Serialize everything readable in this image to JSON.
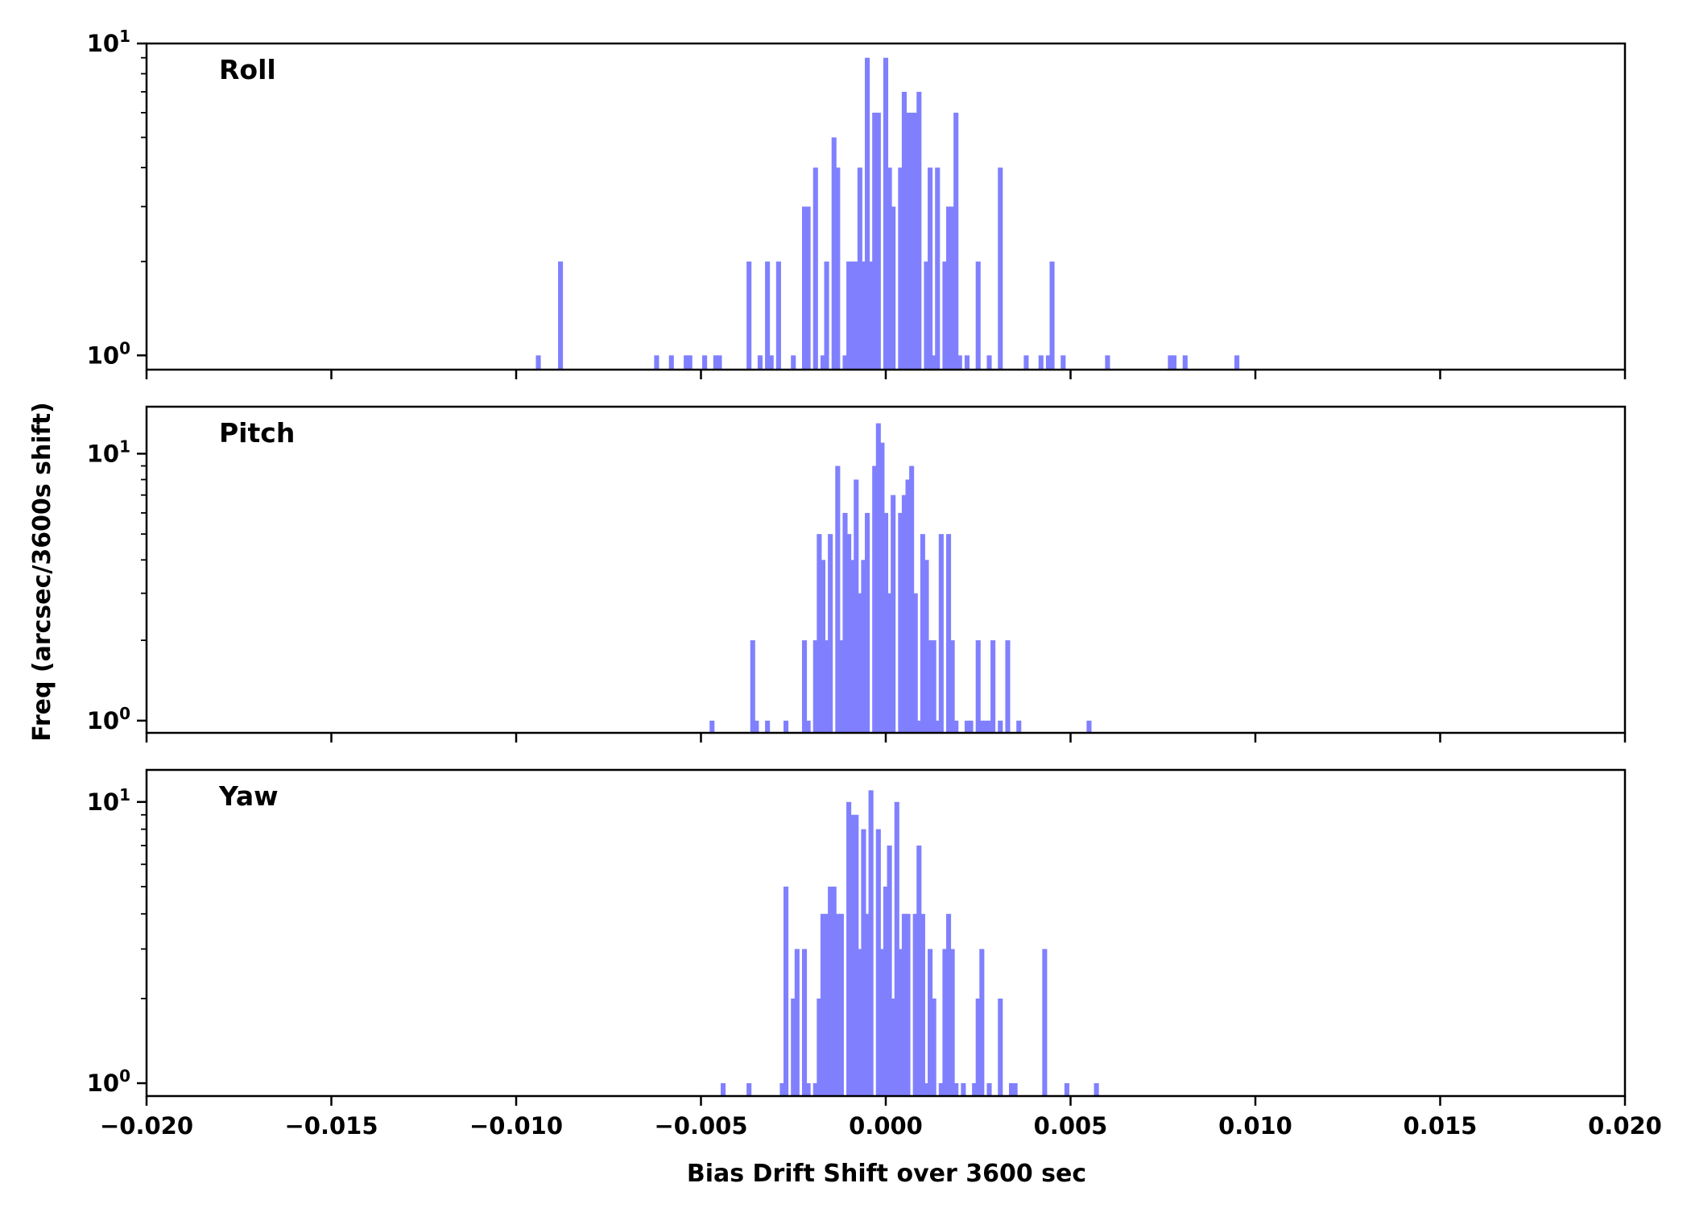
{
  "chart_data": {
    "type": "bar",
    "xlabel": "Bias Drift Shift over 3600 sec",
    "ylabel": "Freq (arcsec/3600s shift)",
    "xlim": [
      -0.02,
      0.02
    ],
    "x_ticks": [
      "−0.020",
      "−0.015",
      "−0.010",
      "−0.005",
      "0.000",
      "0.005",
      "0.010",
      "0.015",
      "0.020"
    ],
    "x_tick_values": [
      -0.02,
      -0.015,
      -0.01,
      -0.005,
      0.0,
      0.005,
      0.01,
      0.015,
      0.02
    ],
    "y_scale": "log",
    "grid": false,
    "bar_color": "#8080ff",
    "bin_width": 0.000133,
    "panels": [
      {
        "name": "Roll",
        "ylim": [
          0.9,
          10
        ],
        "y_ticks": [
          {
            "value": 1,
            "base": "10",
            "exp": "0"
          },
          {
            "value": 10,
            "base": "10",
            "exp": "1"
          }
        ],
        "bars": [
          {
            "x": -0.0094,
            "y": 1
          },
          {
            "x": -0.0088,
            "y": 2
          },
          {
            "x": -0.0062,
            "y": 1
          },
          {
            "x": -0.0058,
            "y": 1
          },
          {
            "x": -0.0054,
            "y": 1
          },
          {
            "x": -0.0053,
            "y": 1
          },
          {
            "x": -0.0049,
            "y": 1
          },
          {
            "x": -0.0046,
            "y": 1
          },
          {
            "x": -0.0045,
            "y": 1
          },
          {
            "x": -0.0037,
            "y": 2
          },
          {
            "x": -0.0034,
            "y": 1
          },
          {
            "x": -0.0032,
            "y": 2
          },
          {
            "x": -0.0031,
            "y": 1
          },
          {
            "x": -0.0029,
            "y": 2
          },
          {
            "x": -0.0025,
            "y": 1
          },
          {
            "x": -0.0022,
            "y": 3
          },
          {
            "x": -0.0021,
            "y": 3
          },
          {
            "x": -0.0019,
            "y": 4
          },
          {
            "x": -0.0017,
            "y": 1
          },
          {
            "x": -0.0016,
            "y": 2
          },
          {
            "x": -0.0014,
            "y": 5
          },
          {
            "x": -0.0013,
            "y": 4
          },
          {
            "x": -0.0011,
            "y": 1
          },
          {
            "x": -0.001,
            "y": 2
          },
          {
            "x": -0.0009,
            "y": 2
          },
          {
            "x": -0.0008,
            "y": 2
          },
          {
            "x": -0.0007,
            "y": 4
          },
          {
            "x": -0.0006,
            "y": 2
          },
          {
            "x": -0.0005,
            "y": 9
          },
          {
            "x": -0.0004,
            "y": 2
          },
          {
            "x": -0.0003,
            "y": 6
          },
          {
            "x": -0.0002,
            "y": 6
          },
          {
            "x": 0.0,
            "y": 9
          },
          {
            "x": 0.0001,
            "y": 4
          },
          {
            "x": 0.0002,
            "y": 3
          },
          {
            "x": 0.0004,
            "y": 4
          },
          {
            "x": 0.0005,
            "y": 7
          },
          {
            "x": 0.0006,
            "y": 6
          },
          {
            "x": 0.0007,
            "y": 6
          },
          {
            "x": 0.0008,
            "y": 6
          },
          {
            "x": 0.0009,
            "y": 7
          },
          {
            "x": 0.0011,
            "y": 2
          },
          {
            "x": 0.0012,
            "y": 4
          },
          {
            "x": 0.0013,
            "y": 1
          },
          {
            "x": 0.0014,
            "y": 4
          },
          {
            "x": 0.0016,
            "y": 2
          },
          {
            "x": 0.0017,
            "y": 3
          },
          {
            "x": 0.0018,
            "y": 3
          },
          {
            "x": 0.0019,
            "y": 6
          },
          {
            "x": 0.002,
            "y": 1
          },
          {
            "x": 0.0022,
            "y": 1
          },
          {
            "x": 0.0025,
            "y": 2
          },
          {
            "x": 0.0028,
            "y": 1
          },
          {
            "x": 0.0031,
            "y": 4
          },
          {
            "x": 0.0038,
            "y": 1
          },
          {
            "x": 0.0042,
            "y": 1
          },
          {
            "x": 0.0044,
            "y": 1
          },
          {
            "x": 0.0045,
            "y": 2
          },
          {
            "x": 0.0048,
            "y": 1
          },
          {
            "x": 0.006,
            "y": 1
          },
          {
            "x": 0.0077,
            "y": 1
          },
          {
            "x": 0.0078,
            "y": 1
          },
          {
            "x": 0.0081,
            "y": 1
          },
          {
            "x": 0.0095,
            "y": 1
          }
        ]
      },
      {
        "name": "Pitch",
        "ylim": [
          0.9,
          15
        ],
        "y_ticks": [
          {
            "value": 1,
            "base": "10",
            "exp": "0"
          },
          {
            "value": 10,
            "base": "10",
            "exp": "1"
          }
        ],
        "bars": [
          {
            "x": -0.0047,
            "y": 1
          },
          {
            "x": -0.0036,
            "y": 2
          },
          {
            "x": -0.0035,
            "y": 1
          },
          {
            "x": -0.0032,
            "y": 1
          },
          {
            "x": -0.0027,
            "y": 1
          },
          {
            "x": -0.0022,
            "y": 2
          },
          {
            "x": -0.0021,
            "y": 1
          },
          {
            "x": -0.0019,
            "y": 2
          },
          {
            "x": -0.0018,
            "y": 5
          },
          {
            "x": -0.0017,
            "y": 4
          },
          {
            "x": -0.0016,
            "y": 2
          },
          {
            "x": -0.0015,
            "y": 5
          },
          {
            "x": -0.0013,
            "y": 9
          },
          {
            "x": -0.0012,
            "y": 2
          },
          {
            "x": -0.0011,
            "y": 6
          },
          {
            "x": -0.001,
            "y": 5
          },
          {
            "x": -0.0009,
            "y": 4
          },
          {
            "x": -0.0008,
            "y": 8
          },
          {
            "x": -0.0007,
            "y": 3
          },
          {
            "x": -0.0006,
            "y": 4
          },
          {
            "x": -0.0005,
            "y": 6
          },
          {
            "x": -0.0003,
            "y": 9
          },
          {
            "x": -0.0002,
            "y": 13
          },
          {
            "x": -0.0001,
            "y": 11
          },
          {
            "x": 0.0,
            "y": 6
          },
          {
            "x": 0.0001,
            "y": 3
          },
          {
            "x": 0.0002,
            "y": 7
          },
          {
            "x": 0.0004,
            "y": 6
          },
          {
            "x": 0.0005,
            "y": 7
          },
          {
            "x": 0.0006,
            "y": 8
          },
          {
            "x": 0.0007,
            "y": 9
          },
          {
            "x": 0.0008,
            "y": 3
          },
          {
            "x": 0.0009,
            "y": 1
          },
          {
            "x": 0.001,
            "y": 5
          },
          {
            "x": 0.0011,
            "y": 4
          },
          {
            "x": 0.0012,
            "y": 2
          },
          {
            "x": 0.0013,
            "y": 2
          },
          {
            "x": 0.0014,
            "y": 1
          },
          {
            "x": 0.0015,
            "y": 5
          },
          {
            "x": 0.0017,
            "y": 5
          },
          {
            "x": 0.0018,
            "y": 2
          },
          {
            "x": 0.0019,
            "y": 1
          },
          {
            "x": 0.0022,
            "y": 1
          },
          {
            "x": 0.0023,
            "y": 1
          },
          {
            "x": 0.0025,
            "y": 2
          },
          {
            "x": 0.0026,
            "y": 1
          },
          {
            "x": 0.0027,
            "y": 1
          },
          {
            "x": 0.0028,
            "y": 1
          },
          {
            "x": 0.0029,
            "y": 2
          },
          {
            "x": 0.0031,
            "y": 1
          },
          {
            "x": 0.0033,
            "y": 2
          },
          {
            "x": 0.0036,
            "y": 1
          },
          {
            "x": 0.0055,
            "y": 1
          }
        ]
      },
      {
        "name": "Yaw",
        "ylim": [
          0.9,
          13
        ],
        "y_ticks": [
          {
            "value": 1,
            "base": "10",
            "exp": "0"
          },
          {
            "value": 10,
            "base": "10",
            "exp": "1"
          }
        ],
        "bars": [
          {
            "x": -0.0044,
            "y": 1
          },
          {
            "x": -0.0037,
            "y": 1
          },
          {
            "x": -0.0028,
            "y": 1
          },
          {
            "x": -0.0027,
            "y": 5
          },
          {
            "x": -0.0025,
            "y": 2
          },
          {
            "x": -0.0024,
            "y": 3
          },
          {
            "x": -0.0022,
            "y": 3
          },
          {
            "x": -0.0021,
            "y": 1
          },
          {
            "x": -0.0019,
            "y": 1
          },
          {
            "x": -0.0018,
            "y": 2
          },
          {
            "x": -0.0017,
            "y": 4
          },
          {
            "x": -0.0016,
            "y": 4
          },
          {
            "x": -0.0015,
            "y": 5
          },
          {
            "x": -0.0014,
            "y": 5
          },
          {
            "x": -0.0013,
            "y": 4
          },
          {
            "x": -0.0012,
            "y": 4
          },
          {
            "x": -0.001,
            "y": 10
          },
          {
            "x": -0.0009,
            "y": 9
          },
          {
            "x": -0.0008,
            "y": 9
          },
          {
            "x": -0.0007,
            "y": 3
          },
          {
            "x": -0.0006,
            "y": 8
          },
          {
            "x": -0.0005,
            "y": 4
          },
          {
            "x": -0.0004,
            "y": 11
          },
          {
            "x": -0.0002,
            "y": 8
          },
          {
            "x": -0.0001,
            "y": 3
          },
          {
            "x": 0.0,
            "y": 5
          },
          {
            "x": 0.0001,
            "y": 7
          },
          {
            "x": 0.0002,
            "y": 2
          },
          {
            "x": 0.0003,
            "y": 10
          },
          {
            "x": 0.0004,
            "y": 3
          },
          {
            "x": 0.0005,
            "y": 4
          },
          {
            "x": 0.0006,
            "y": 4
          },
          {
            "x": 0.0008,
            "y": 4
          },
          {
            "x": 0.0009,
            "y": 7
          },
          {
            "x": 0.001,
            "y": 4
          },
          {
            "x": 0.0011,
            "y": 1
          },
          {
            "x": 0.0012,
            "y": 3
          },
          {
            "x": 0.0013,
            "y": 2
          },
          {
            "x": 0.0015,
            "y": 1
          },
          {
            "x": 0.0016,
            "y": 3
          },
          {
            "x": 0.0017,
            "y": 4
          },
          {
            "x": 0.0018,
            "y": 3
          },
          {
            "x": 0.0019,
            "y": 1
          },
          {
            "x": 0.0021,
            "y": 1
          },
          {
            "x": 0.0024,
            "y": 1
          },
          {
            "x": 0.0025,
            "y": 2
          },
          {
            "x": 0.0026,
            "y": 3
          },
          {
            "x": 0.0028,
            "y": 1
          },
          {
            "x": 0.0031,
            "y": 2
          },
          {
            "x": 0.0034,
            "y": 1
          },
          {
            "x": 0.0035,
            "y": 1
          },
          {
            "x": 0.0043,
            "y": 3
          },
          {
            "x": 0.0049,
            "y": 1
          },
          {
            "x": 0.0057,
            "y": 1
          }
        ]
      }
    ]
  }
}
